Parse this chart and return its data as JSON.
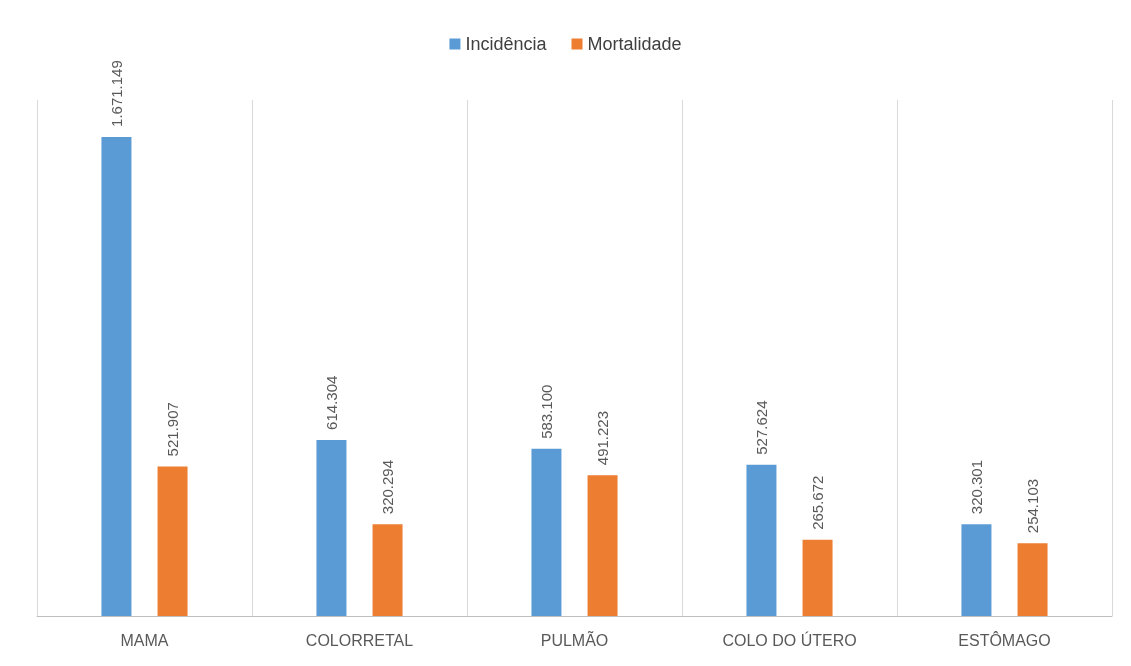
{
  "chart_data": {
    "type": "bar",
    "categories": [
      "MAMA",
      "COLORRETAL",
      "PULMÃO",
      "COLO DO ÚTERO",
      "ESTÔMAGO"
    ],
    "series": [
      {
        "name": "Incidência",
        "color": "#5b9bd5",
        "values": [
          1671149,
          614304,
          583100,
          527624,
          320301
        ],
        "value_labels": [
          "1.671.149",
          "614.304",
          "583.100",
          "527.624",
          "320.301"
        ]
      },
      {
        "name": "Mortalidade",
        "color": "#ed7d31",
        "values": [
          521907,
          320294,
          491223,
          265672,
          254103
        ],
        "value_labels": [
          "521.907",
          "320.294",
          "491.223",
          "265.672",
          "254.103"
        ]
      }
    ],
    "legend": "top",
    "grid": "x"
  }
}
